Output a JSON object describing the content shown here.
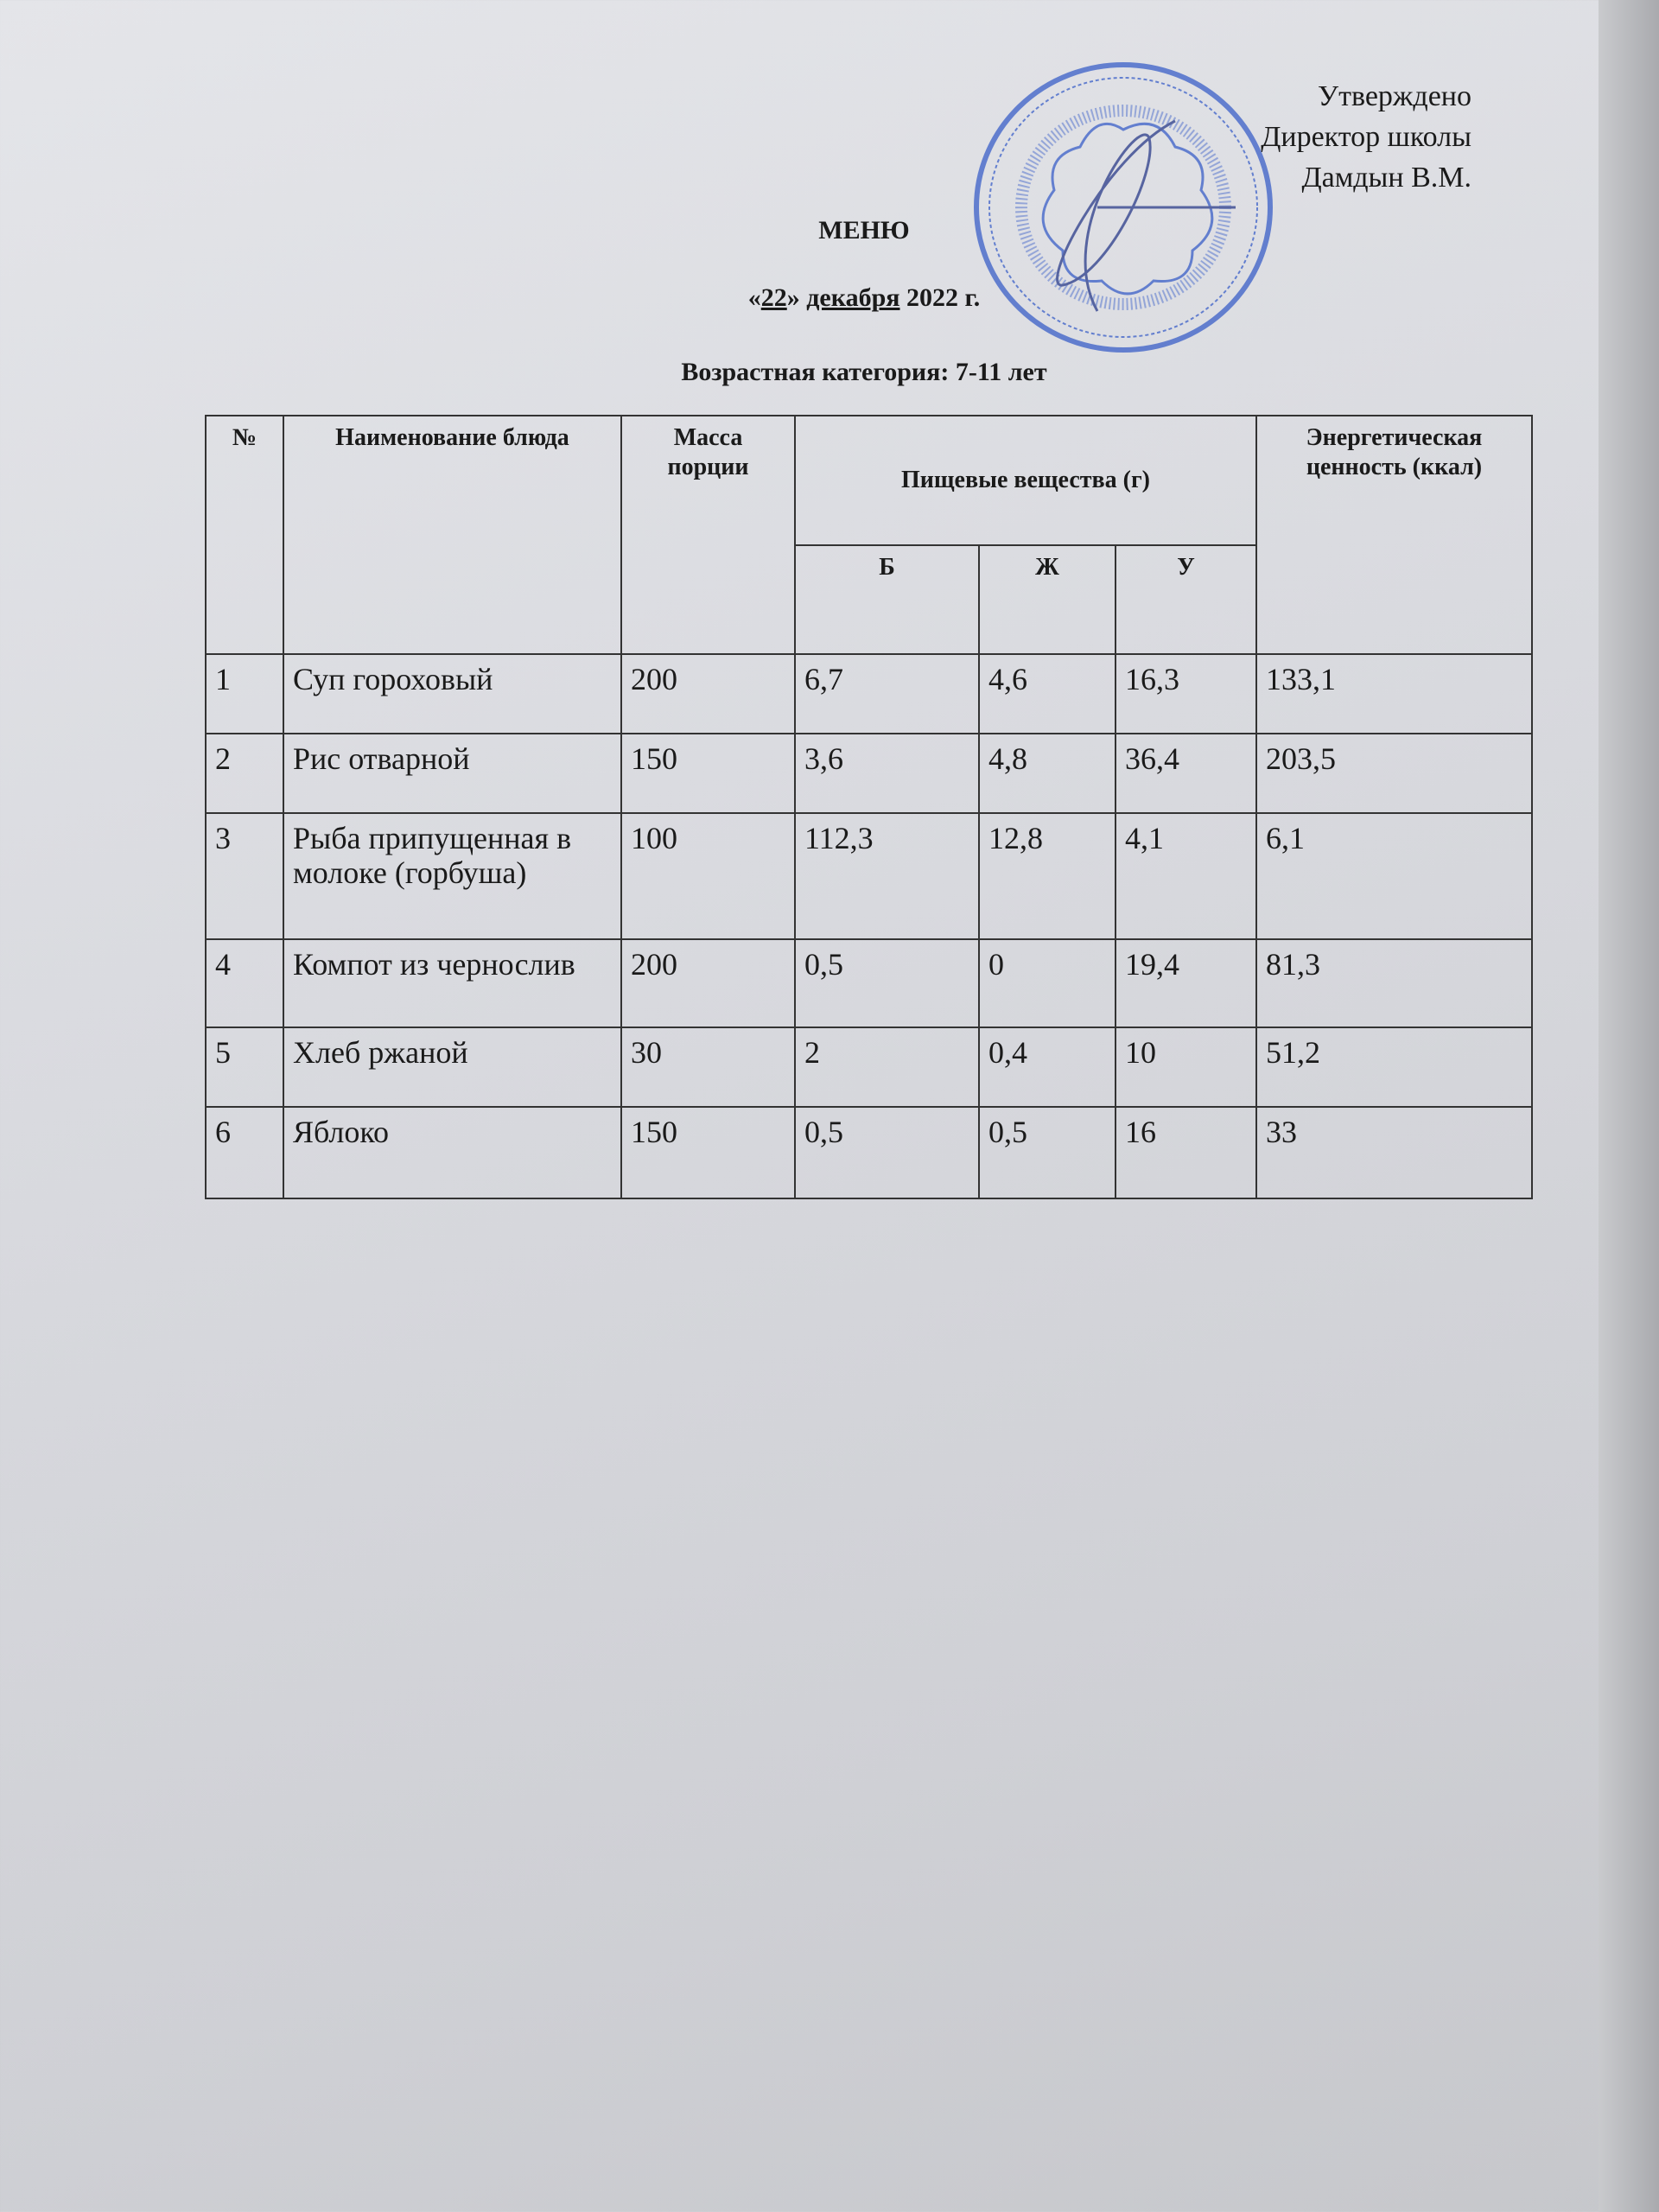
{
  "approval": {
    "line1": "Утверждено",
    "line2": "Директор школы",
    "line3": "Дамдын В.М."
  },
  "title": "МЕНЮ",
  "date": {
    "open": "«",
    "day": "22",
    "close": "»",
    "month": "декабря",
    "year": "2022 г."
  },
  "age_category": "Возрастная категория: 7-11 лет",
  "stamp_color": "#3a5fc8",
  "table": {
    "headers": {
      "num": "№",
      "name": "Наименование блюда",
      "mass": "Масса порции",
      "nutrients": "Пищевые вещества (г)",
      "energy": "Энергетическая ценность (ккал)",
      "b": "Б",
      "zh": "Ж",
      "u": "У"
    },
    "rows": [
      {
        "num": "1",
        "name": "Суп гороховый",
        "mass": "200",
        "b": "6,7",
        "zh": "4,6",
        "u": "16,3",
        "energy": "133,1"
      },
      {
        "num": "2",
        "name": "Рис отварной",
        "mass": "150",
        "b": "3,6",
        "zh": "4,8",
        "u": "36,4",
        "energy": "203,5"
      },
      {
        "num": "3",
        "name": "Рыба припущенная в молоке (горбуша)",
        "mass": "100",
        "b": "112,3",
        "zh": "12,8",
        "u": "4,1",
        "energy": "6,1"
      },
      {
        "num": "4",
        "name": "Компот из чернослив",
        "mass": "200",
        "b": "0,5",
        "zh": "0",
        "u": "19,4",
        "energy": "81,3"
      },
      {
        "num": "5",
        "name": "Хлеб ржаной",
        "mass": "30",
        "b": "2",
        "zh": "0,4",
        "u": "10",
        "energy": "51,2"
      },
      {
        "num": "6",
        "name": "Яблоко",
        "mass": "150",
        "b": "0,5",
        "zh": "0,5",
        "u": "16",
        "energy": "33"
      }
    ]
  }
}
